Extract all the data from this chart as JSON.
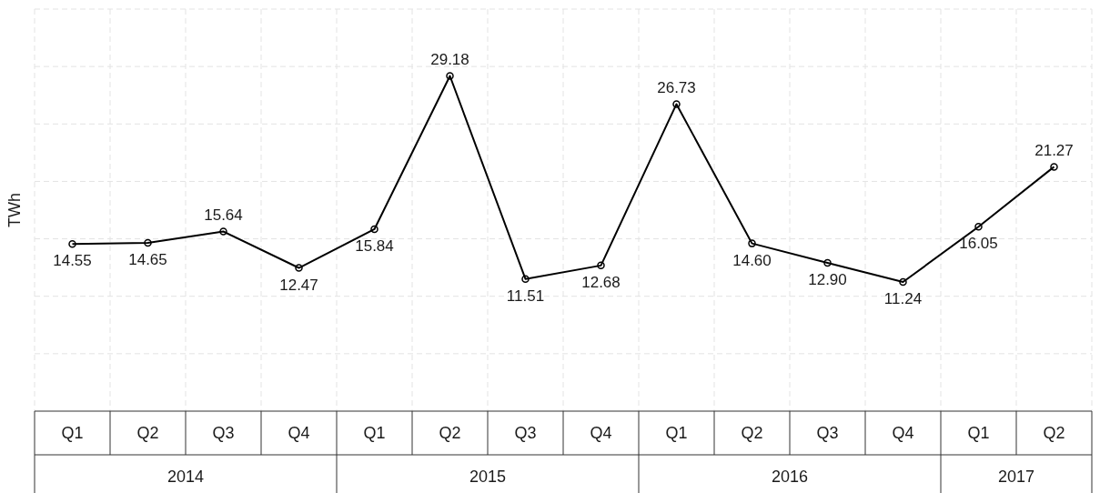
{
  "chart_data": {
    "type": "line",
    "ylabel": "TWh",
    "categories": [
      "Q1",
      "Q2",
      "Q3",
      "Q4",
      "Q1",
      "Q2",
      "Q3",
      "Q4",
      "Q1",
      "Q2",
      "Q3",
      "Q4",
      "Q1",
      "Q2"
    ],
    "series": [
      {
        "color": "#000000",
        "values": [
          14.55,
          14.65,
          15.64,
          12.47,
          15.84,
          29.18,
          11.51,
          12.68,
          26.73,
          14.6,
          12.9,
          11.24,
          16.05,
          21.27
        ],
        "value_labels": [
          "14.55",
          "14.65",
          "15.64",
          "12.47",
          "15.84",
          "29.18",
          "11.51",
          "12.68",
          "26.73",
          "14.60",
          "12.90",
          "11.24",
          "16.05",
          "21.27"
        ]
      }
    ],
    "annotations": [
      "2014",
      "2015",
      "2016",
      "2017"
    ],
    "ylim": [
      0,
      35
    ],
    "yticks": [
      {
        "value": 5,
        "label": null
      },
      {
        "value": 10,
        "label": null
      },
      {
        "value": 15,
        "label": null
      },
      {
        "value": 20,
        "label": null
      },
      {
        "value": 25,
        "label": null
      },
      {
        "value": 30,
        "label": null
      },
      {
        "value": 35,
        "label": null
      }
    ],
    "tick_labels": "x",
    "grid": true,
    "marker": "circle",
    "line_style": "solid",
    "legend": false
  }
}
